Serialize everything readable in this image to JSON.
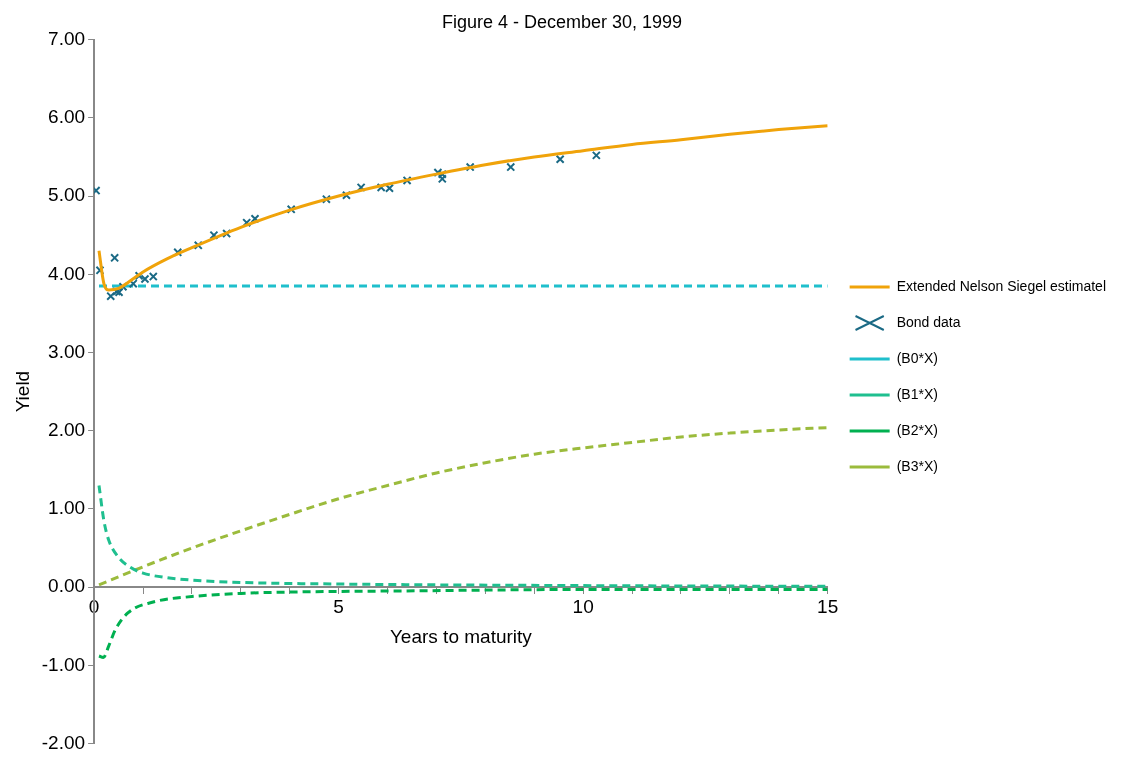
{
  "chart_data": {
    "type": "line",
    "title": "Figure 4 - December 30, 1999",
    "xlabel": "Years to maturity",
    "ylabel": "Yield",
    "xlim": [
      0,
      15
    ],
    "xticks": [
      0,
      {
        "value": 1,
        "label": null
      },
      {
        "value": 2,
        "label": null
      },
      {
        "value": 3,
        "label": null
      },
      {
        "value": 4,
        "label": null
      },
      5,
      {
        "value": 6,
        "label": null
      },
      {
        "value": 7,
        "label": null
      },
      {
        "value": 8,
        "label": null
      },
      {
        "value": 9,
        "label": null
      },
      10,
      {
        "value": 11,
        "label": null
      },
      {
        "value": 12,
        "label": null
      },
      {
        "value": 13,
        "label": null
      },
      {
        "value": 14,
        "label": null
      },
      15
    ],
    "ylim": [
      -2,
      7
    ],
    "yticks": [
      {
        "value": -2,
        "label": "-2.00"
      },
      {
        "value": -1,
        "label": "-1.00"
      },
      {
        "value": 0,
        "label": "0.00"
      },
      {
        "value": 1,
        "label": "1.00"
      },
      {
        "value": 2,
        "label": "2.00"
      },
      {
        "value": 3,
        "label": "3.00"
      },
      {
        "value": 4,
        "label": "4.00"
      },
      {
        "value": 5,
        "label": "5.00"
      },
      {
        "value": 6,
        "label": "6.00"
      },
      {
        "value": 7,
        "label": "7.00"
      }
    ],
    "grid": false,
    "legend": "right",
    "series": [
      {
        "name": "Extended Nelson Siegel estimatel",
        "line_style": "solid",
        "marker": "none",
        "color": "#f0a30a",
        "x": [
          0.1,
          0.2,
          0.3,
          0.5,
          0.75,
          1,
          1.5,
          2,
          3,
          4,
          5,
          6,
          7,
          8,
          9,
          10,
          11,
          12,
          13,
          14,
          15
        ],
        "values": [
          4.3,
          3.88,
          3.8,
          3.82,
          3.92,
          4.03,
          4.2,
          4.34,
          4.6,
          4.82,
          5.0,
          5.15,
          5.28,
          5.4,
          5.5,
          5.58,
          5.66,
          5.72,
          5.79,
          5.85,
          5.9
        ]
      },
      {
        "name": "Bond data",
        "type": "scatter",
        "marker": "cross",
        "color": "#1b6a85",
        "x": [
          0.04,
          0.12,
          0.42,
          0.34,
          0.46,
          0.51,
          0.59,
          0.8,
          0.92,
          1.04,
          1.21,
          1.71,
          2.13,
          2.45,
          2.71,
          3.12,
          3.29,
          4.03,
          4.75,
          5.16,
          5.46,
          5.87,
          6.04,
          6.4,
          7.03,
          7.12,
          7.12,
          7.69,
          8.52,
          9.53,
          10.27
        ],
        "values": [
          5.07,
          4.05,
          4.21,
          3.72,
          3.78,
          3.77,
          3.84,
          3.88,
          3.98,
          3.94,
          3.97,
          4.28,
          4.37,
          4.5,
          4.52,
          4.66,
          4.71,
          4.83,
          4.96,
          5.01,
          5.11,
          5.11,
          5.1,
          5.2,
          5.3,
          5.28,
          5.22,
          5.37,
          5.37,
          5.47,
          5.52
        ]
      },
      {
        "name": "(B0*X)",
        "line_style": "dashed",
        "marker": "none",
        "color": "#1fbfcc",
        "x": [
          0.1,
          15
        ],
        "values": [
          3.85,
          3.85
        ]
      },
      {
        "name": "(B1*X)",
        "line_style": "dashed",
        "marker": "none",
        "color": "#1fbf8f",
        "x": [
          0.1,
          0.2,
          0.3,
          0.5,
          0.75,
          1,
          1.5,
          2,
          3,
          5,
          10,
          15
        ],
        "values": [
          1.3,
          0.85,
          0.6,
          0.38,
          0.25,
          0.18,
          0.12,
          0.09,
          0.06,
          0.04,
          0.02,
          0.01
        ]
      },
      {
        "name": "(B2*X)",
        "line_style": "dashed",
        "marker": "none",
        "color": "#00b050",
        "x": [
          0.1,
          0.19,
          0.3,
          0.43,
          0.69,
          1.21,
          2,
          3,
          4.25,
          6,
          10,
          15
        ],
        "values": [
          -0.88,
          -0.9,
          -0.75,
          -0.55,
          -0.33,
          -0.19,
          -0.12,
          -0.08,
          -0.06,
          -0.05,
          -0.03,
          -0.03
        ]
      },
      {
        "name": "(B3*X)",
        "line_style": "dashed",
        "marker": "none",
        "color": "#9bbb3c",
        "x": [
          0.1,
          1,
          2,
          3,
          4,
          5,
          6,
          7,
          8,
          9,
          10,
          11,
          12,
          13,
          14,
          15
        ],
        "values": [
          0.03,
          0.26,
          0.5,
          0.72,
          0.93,
          1.13,
          1.3,
          1.46,
          1.59,
          1.7,
          1.78,
          1.85,
          1.92,
          1.97,
          2.01,
          2.04
        ]
      }
    ]
  }
}
